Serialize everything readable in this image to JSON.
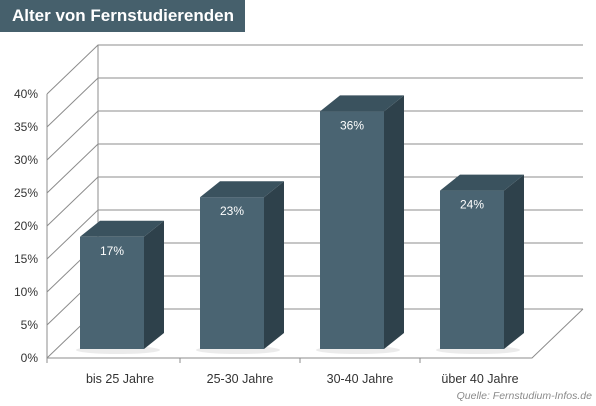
{
  "title": "Alter von Fernstudierenden",
  "source": "Quelle: Fernstudium-Infos.de",
  "colors": {
    "bar_front": "#4a6472",
    "bar_side": "#2e414b",
    "bar_top": "#3a525e",
    "grid": "#8c8c8c",
    "title_bg": "#46606c"
  },
  "chart_data": {
    "type": "bar",
    "categories": [
      "bis 25 Jahre",
      "25-30 Jahre",
      "30-40 Jahre",
      "über 40 Jahre"
    ],
    "values": [
      17,
      23,
      36,
      24
    ],
    "value_labels": [
      "17%",
      "23%",
      "36%",
      "24%"
    ],
    "y_ticks": [
      "0%",
      "5%",
      "10%",
      "15%",
      "20%",
      "25%",
      "30%",
      "35%",
      "40%"
    ],
    "ylim": [
      0,
      40
    ],
    "grid": true,
    "style": "3d"
  }
}
